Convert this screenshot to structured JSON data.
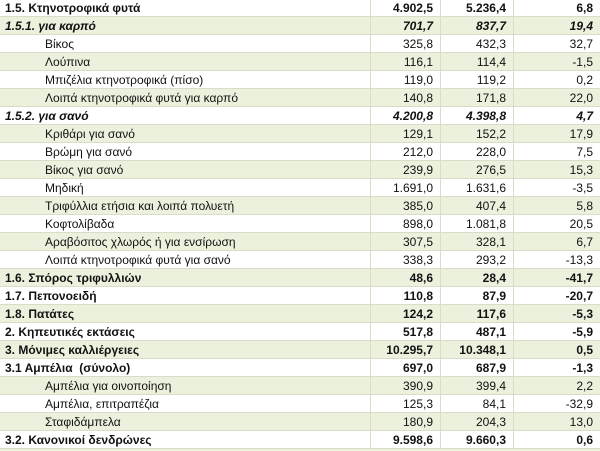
{
  "colors": {
    "band_green": "#ecf1de",
    "grid_border": "#d9ddc8",
    "text": "#111111"
  },
  "table": {
    "rows": [
      {
        "label": "1.5. Κτηνοτροφικά φυτά",
        "values": [
          "4.902,5",
          "5.236,4",
          "6,8"
        ],
        "emphasis": "bold",
        "indent": 0
      },
      {
        "label": "1.5.1. για καρπό",
        "values": [
          "701,7",
          "837,7",
          "19,4"
        ],
        "emphasis": "bold-italic",
        "indent": 0
      },
      {
        "label": "Βίκος",
        "values": [
          "325,8",
          "432,3",
          "32,7"
        ],
        "emphasis": "normal",
        "indent": 1
      },
      {
        "label": "Λούπινα",
        "values": [
          "116,1",
          "114,4",
          "-1,5"
        ],
        "emphasis": "normal",
        "indent": 1
      },
      {
        "label": "Μπιζέλια κτηνοτροφικά (πίσο)",
        "values": [
          "119,0",
          "119,2",
          "0,2"
        ],
        "emphasis": "normal",
        "indent": 1
      },
      {
        "label": "Λοιπά κτηνοτροφικά φυτά για καρπό",
        "values": [
          "140,8",
          "171,8",
          "22,0"
        ],
        "emphasis": "normal",
        "indent": 1
      },
      {
        "label": "1.5.2. για σανό",
        "values": [
          "4.200,8",
          "4.398,8",
          "4,7"
        ],
        "emphasis": "bold-italic",
        "indent": 0
      },
      {
        "label": "Κριθάρι για σανό",
        "values": [
          "129,1",
          "152,2",
          "17,9"
        ],
        "emphasis": "normal",
        "indent": 1
      },
      {
        "label": "Βρώμη για σανό",
        "values": [
          "212,0",
          "228,0",
          "7,5"
        ],
        "emphasis": "normal",
        "indent": 1
      },
      {
        "label": "Βίκος για σανό",
        "values": [
          "239,9",
          "276,5",
          "15,3"
        ],
        "emphasis": "normal",
        "indent": 1
      },
      {
        "label": "Μηδική",
        "values": [
          "1.691,0",
          "1.631,6",
          "-3,5"
        ],
        "emphasis": "normal",
        "indent": 1
      },
      {
        "label": "Τριφύλλια ετήσια και λοιπά πολυετή",
        "values": [
          "385,0",
          "407,4",
          "5,8"
        ],
        "emphasis": "normal",
        "indent": 1
      },
      {
        "label": "Κοφτολίβαδα",
        "values": [
          "898,0",
          "1.081,8",
          "20,5"
        ],
        "emphasis": "normal",
        "indent": 1
      },
      {
        "label": "Αραβόσιτος χλωρός ή για ενσίρωση",
        "values": [
          "307,5",
          "328,1",
          "6,7"
        ],
        "emphasis": "normal",
        "indent": 1
      },
      {
        "label": "Λοιπά κτηνοτροφικά φυτά για σανό",
        "values": [
          "338,3",
          "293,2",
          "-13,3"
        ],
        "emphasis": "normal",
        "indent": 1
      },
      {
        "label": "1.6. Σπόρος τριφυλλιών",
        "values": [
          "48,6",
          "28,4",
          "-41,7"
        ],
        "emphasis": "bold",
        "indent": 0
      },
      {
        "label": "1.7. Πεπονοειδή",
        "values": [
          "110,8",
          "87,9",
          "-20,7"
        ],
        "emphasis": "bold",
        "indent": 0
      },
      {
        "label": "1.8. Πατάτες",
        "values": [
          "124,2",
          "117,6",
          "-5,3"
        ],
        "emphasis": "bold",
        "indent": 0
      },
      {
        "label": "2. Κηπευτικές εκτάσεις",
        "values": [
          "517,8",
          "487,1",
          "-5,9"
        ],
        "emphasis": "bold",
        "indent": 0
      },
      {
        "label": "3. Μόνιμες καλλιέργειες",
        "values": [
          "10.295,7",
          "10.348,1",
          "0,5"
        ],
        "emphasis": "bold",
        "indent": 0
      },
      {
        "label": "3.1 Αμπέλια  (σύνολο)",
        "values": [
          "697,0",
          "687,9",
          "-1,3"
        ],
        "emphasis": "bold",
        "indent": 0
      },
      {
        "label": "Αμπέλια για οινοποίηση",
        "values": [
          "390,9",
          "399,4",
          "2,2"
        ],
        "emphasis": "normal",
        "indent": 1
      },
      {
        "label": "Αμπέλια, επιτραπέζια",
        "values": [
          "125,3",
          "84,1",
          "-32,9"
        ],
        "emphasis": "normal",
        "indent": 1
      },
      {
        "label": "Σταφιδάμπελα",
        "values": [
          "180,9",
          "204,3",
          "13,0"
        ],
        "emphasis": "normal",
        "indent": 1
      },
      {
        "label": "3.2. Κανονικοί δενδρώνες",
        "values": [
          "9.598,6",
          "9.660,3",
          "0,6"
        ],
        "emphasis": "bold",
        "indent": 0
      }
    ]
  }
}
